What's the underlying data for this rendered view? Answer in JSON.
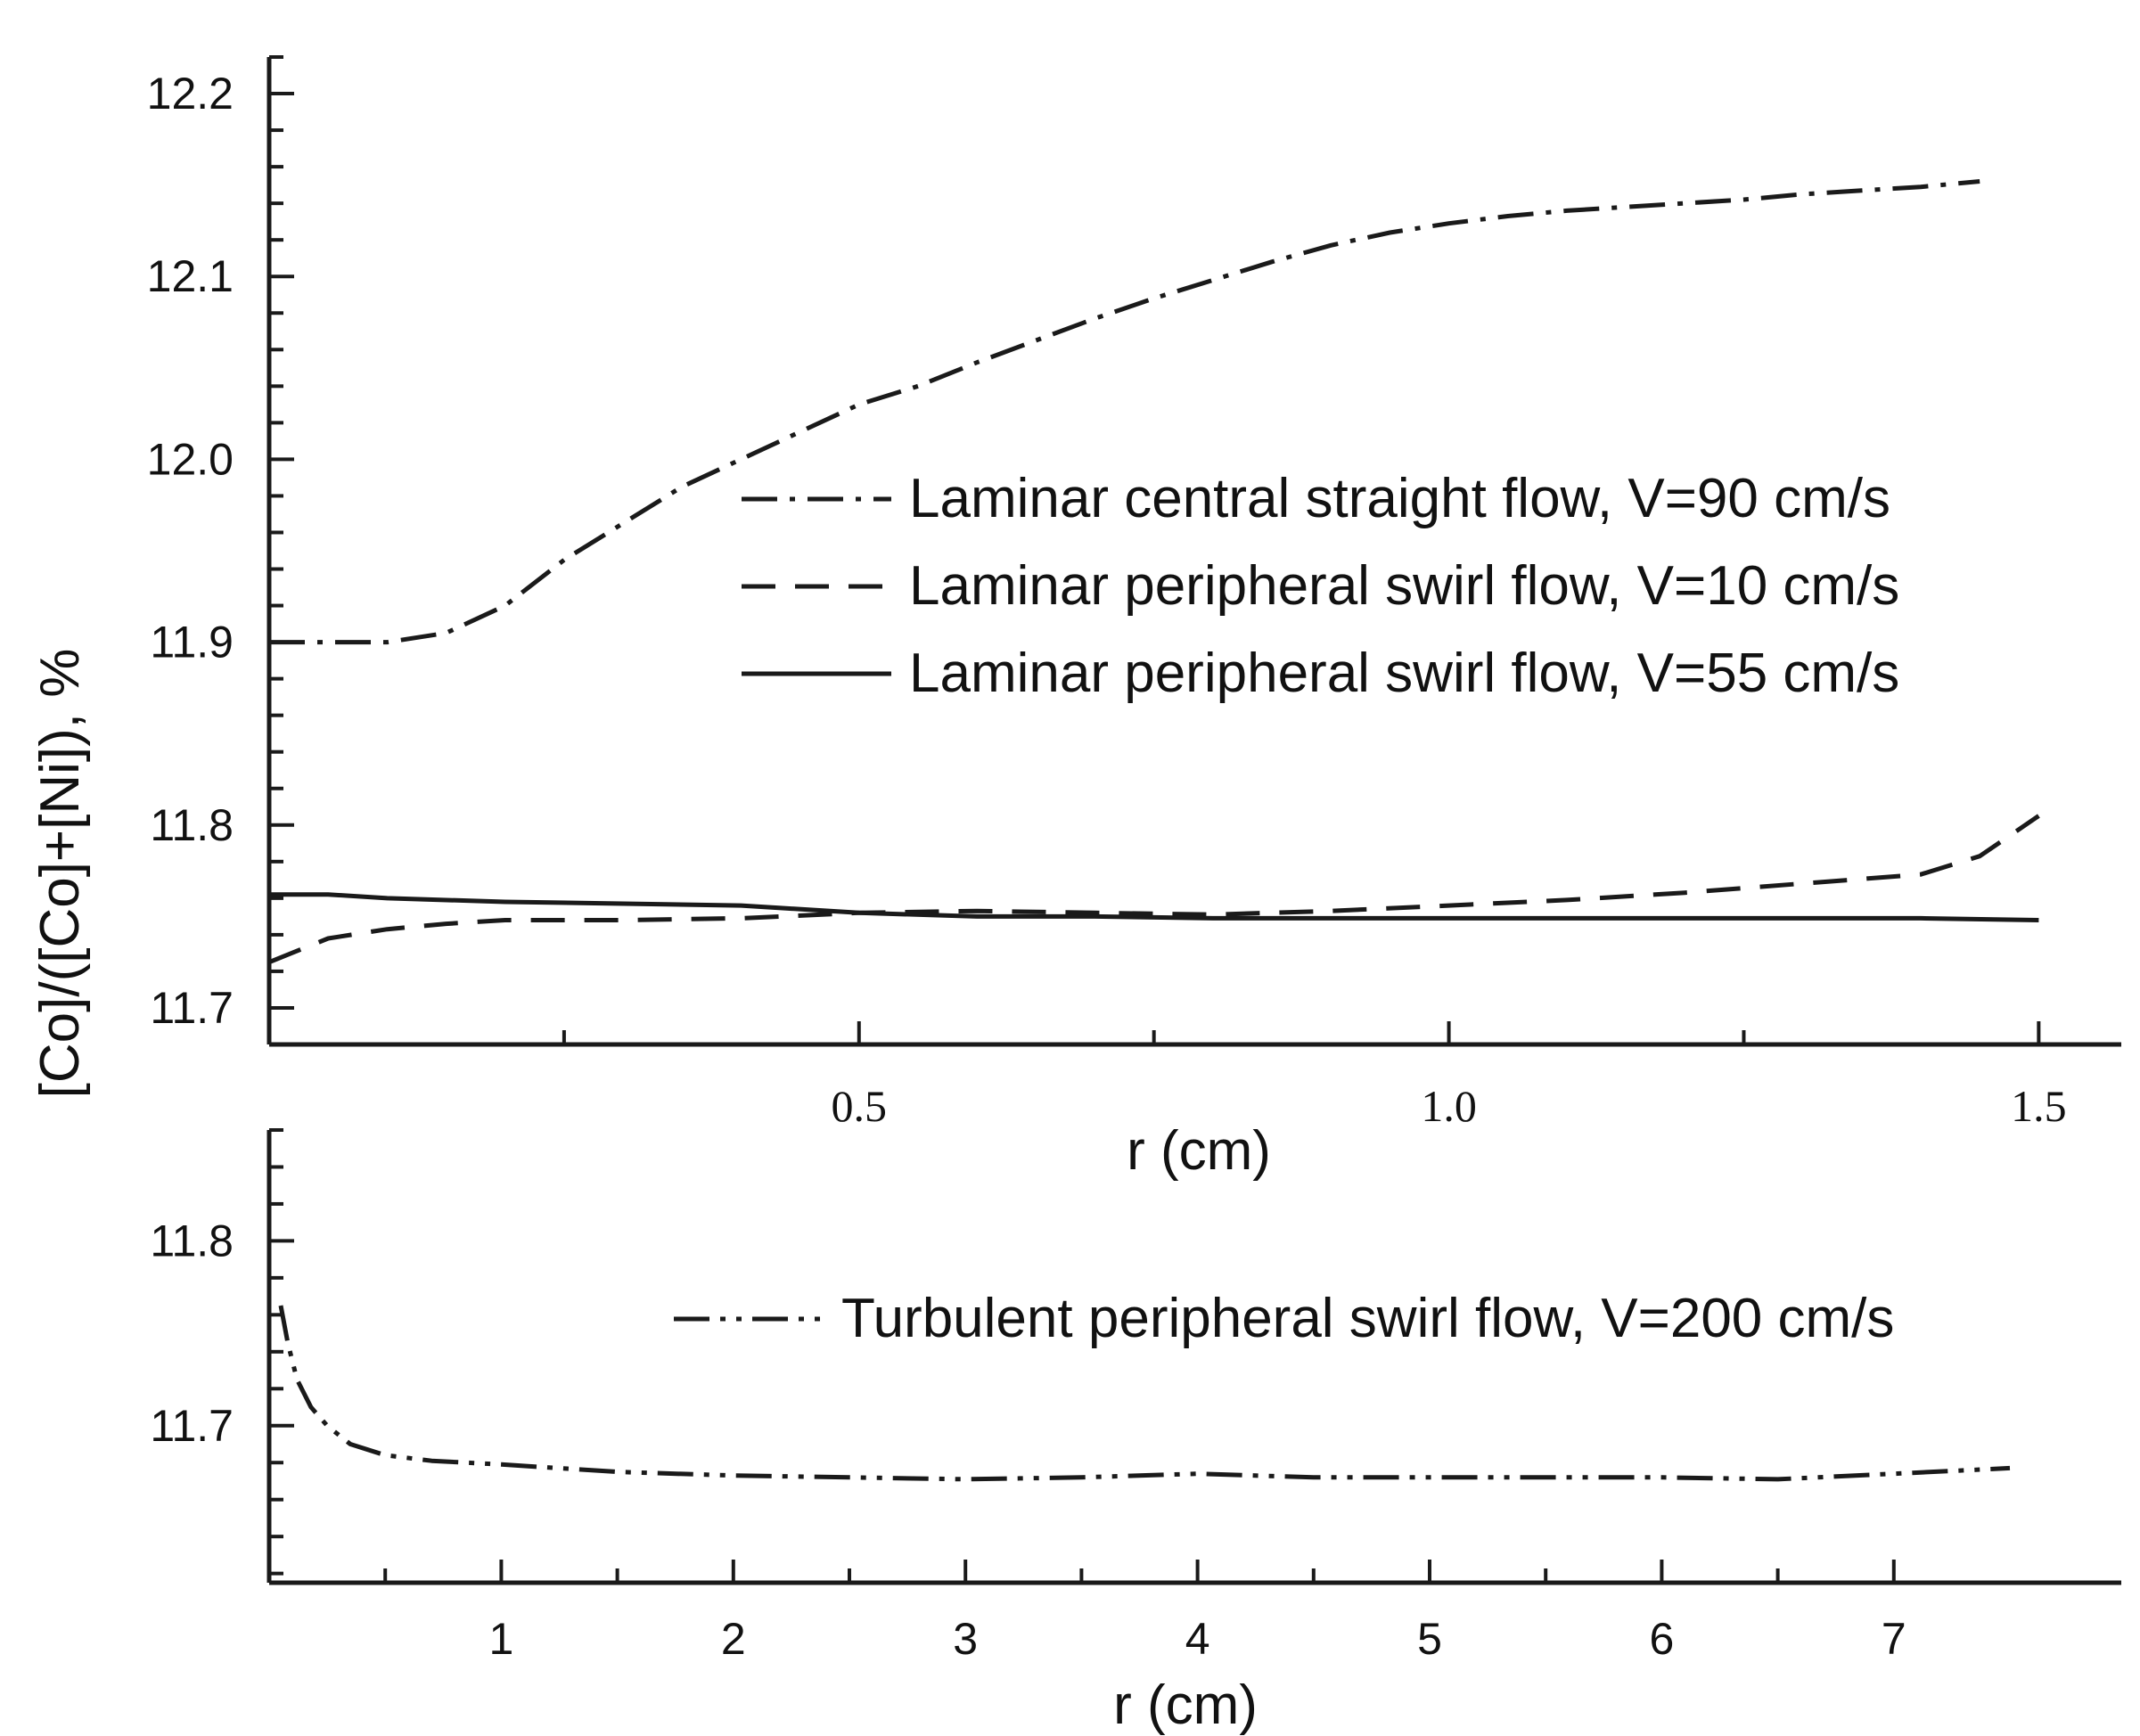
{
  "shared_ylabel": "[Co]/([Co]+[Ni]), %",
  "chart_data": [
    {
      "type": "line",
      "xlabel": "r (cm)",
      "ylabel": "[Co]/([Co]+[Ni]), %",
      "xlim": [
        0.0,
        1.57
      ],
      "ylim": [
        11.68,
        12.22
      ],
      "xticks_major": [
        0.5,
        1.0,
        1.5
      ],
      "xtick_labels": [
        "0.5",
        "1.0",
        "1.5"
      ],
      "xticks_minor": [
        0.0,
        0.25,
        0.75,
        1.25
      ],
      "yticks_major": [
        11.7,
        11.8,
        11.9,
        12.0,
        12.1,
        12.2
      ],
      "ytick_labels": [
        "11.7",
        "11.8",
        "11.9",
        "12.0",
        "12.1",
        "12.2"
      ],
      "legend_position": "center-right",
      "series": [
        {
          "name": "Laminar central straight flow, V=90 cm/s",
          "dash": "dashdot",
          "x": [
            0.0,
            0.05,
            0.1,
            0.15,
            0.2,
            0.25,
            0.3,
            0.35,
            0.4,
            0.45,
            0.5,
            0.55,
            0.6,
            0.65,
            0.7,
            0.75,
            0.8,
            0.85,
            0.9,
            0.95,
            1.0,
            1.05,
            1.1,
            1.15,
            1.2,
            1.25,
            1.3,
            1.35,
            1.4,
            1.45
          ],
          "y": [
            11.9,
            11.9,
            11.9,
            11.905,
            11.92,
            11.945,
            11.965,
            11.985,
            12.0,
            12.015,
            12.03,
            12.04,
            12.053,
            12.065,
            12.077,
            12.088,
            12.098,
            12.108,
            12.117,
            12.124,
            12.129,
            12.133,
            12.136,
            12.138,
            12.14,
            12.142,
            12.145,
            12.147,
            12.149,
            12.152
          ]
        },
        {
          "name": "Laminar peripheral swirl flow, V=10 cm/s",
          "dash": "dashed",
          "x": [
            0.0,
            0.05,
            0.1,
            0.15,
            0.2,
            0.3,
            0.4,
            0.5,
            0.6,
            0.7,
            0.8,
            0.9,
            1.0,
            1.1,
            1.2,
            1.3,
            1.4,
            1.45,
            1.5
          ],
          "y": [
            11.725,
            11.738,
            11.743,
            11.746,
            11.748,
            11.748,
            11.749,
            11.752,
            11.753,
            11.752,
            11.751,
            11.753,
            11.756,
            11.759,
            11.763,
            11.768,
            11.773,
            11.783,
            11.805
          ]
        },
        {
          "name": "Laminar peripheral swirl flow, V=55 cm/s",
          "dash": "solid",
          "x": [
            0.0,
            0.05,
            0.1,
            0.2,
            0.3,
            0.4,
            0.5,
            0.6,
            0.7,
            0.8,
            0.9,
            1.0,
            1.1,
            1.2,
            1.3,
            1.4,
            1.5
          ],
          "y": [
            11.762,
            11.762,
            11.76,
            11.758,
            11.757,
            11.756,
            11.752,
            11.75,
            11.75,
            11.749,
            11.749,
            11.749,
            11.749,
            11.749,
            11.749,
            11.749,
            11.748
          ]
        }
      ]
    },
    {
      "type": "line",
      "xlabel": "r (cm)",
      "ylabel": "[Co]/([Co]+[Ni]), %",
      "xlim": [
        0.0,
        7.98
      ],
      "ylim": [
        11.615,
        11.86
      ],
      "xticks_major": [
        1,
        2,
        3,
        4,
        5,
        6,
        7
      ],
      "xtick_labels": [
        "1",
        "2",
        "3",
        "4",
        "5",
        "6",
        "7"
      ],
      "xticks_minor": [
        0.5,
        1.5,
        2.5,
        3.5,
        4.5,
        5.5,
        6.5
      ],
      "yticks_major": [
        11.7,
        11.8
      ],
      "ytick_labels": [
        "11.7",
        "11.8"
      ],
      "legend_position": "top-right",
      "series": [
        {
          "name": "Turbulent peripheral swirl flow, V=200 cm/s",
          "dash": "dashdotdot",
          "x": [
            0.05,
            0.08,
            0.12,
            0.18,
            0.25,
            0.35,
            0.5,
            0.7,
            1.0,
            1.5,
            2.0,
            2.5,
            3.0,
            3.5,
            4.0,
            4.5,
            5.0,
            5.5,
            6.0,
            6.5,
            7.0,
            7.5
          ],
          "y": [
            11.765,
            11.745,
            11.725,
            11.71,
            11.7,
            11.69,
            11.684,
            11.681,
            11.679,
            11.675,
            11.673,
            11.672,
            11.671,
            11.672,
            11.674,
            11.672,
            11.672,
            11.672,
            11.672,
            11.671,
            11.674,
            11.677
          ]
        }
      ]
    }
  ]
}
